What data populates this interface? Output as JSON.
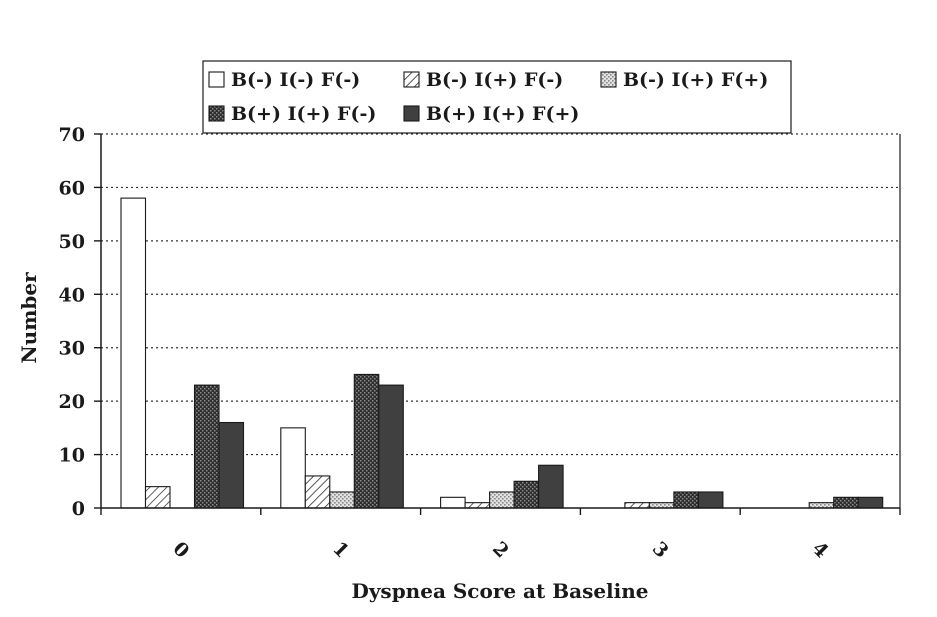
{
  "chart_data": {
    "type": "bar",
    "title": "",
    "xlabel": "Dyspnea Score at Baseline",
    "ylabel": "Number",
    "categories": [
      "0",
      "1",
      "2",
      "3",
      "4"
    ],
    "ylim": [
      0,
      70
    ],
    "yticks": [
      0,
      10,
      20,
      30,
      40,
      50,
      60,
      70
    ],
    "grid": "horizontal-dotted",
    "legend_position": "top",
    "series": [
      {
        "name": "B(-) I(-) F(-)",
        "pattern": "white",
        "values": [
          58,
          15,
          2,
          0,
          0
        ]
      },
      {
        "name": "B(-) I(+) F(-)",
        "pattern": "hatch",
        "values": [
          4,
          6,
          1,
          1,
          0
        ]
      },
      {
        "name": "B(-) I(+) F(+)",
        "pattern": "light-dots",
        "values": [
          0,
          3,
          3,
          1,
          1
        ]
      },
      {
        "name": "B(+) I(+) F(-)",
        "pattern": "dark-dots",
        "values": [
          23,
          25,
          5,
          3,
          2
        ]
      },
      {
        "name": "B(+) I(+) F(+)",
        "pattern": "dark-solid",
        "values": [
          16,
          23,
          8,
          3,
          2
        ]
      }
    ],
    "colors": {
      "dark_solid": "#404040",
      "dark_dots": "#3a3a3a",
      "light_dots": "#d8d8d8",
      "white": "#ffffff",
      "frame": "#1a1a1a"
    }
  }
}
